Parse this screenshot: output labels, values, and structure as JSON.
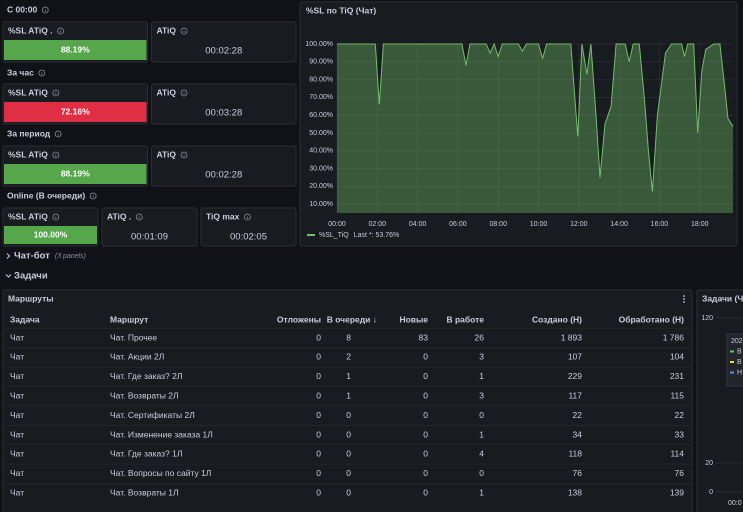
{
  "groups": [
    {
      "title": "С 00:00",
      "stats": [
        {
          "title": "%SL ATiQ .",
          "value": "88.19%",
          "color": "#56a64b"
        },
        {
          "title": "ATiQ",
          "value": "00:02:28"
        }
      ]
    },
    {
      "title": "За час",
      "stats": [
        {
          "title": "%SL ATiQ",
          "value": "72.16%",
          "color": "#e02f44"
        },
        {
          "title": "ATiQ",
          "value": "00:03:28"
        }
      ]
    },
    {
      "title": "За период",
      "stats": [
        {
          "title": "%SL ATiQ",
          "value": "88.19%",
          "color": "#56a64b"
        },
        {
          "title": "ATiQ",
          "value": "00:02:28"
        }
      ]
    },
    {
      "title": "Online (В очереди)",
      "stats": [
        {
          "title": "%SL ATiQ",
          "value": "100.00%",
          "color": "#56a64b"
        },
        {
          "title": "ATiQ .",
          "value": "00:01:09"
        },
        {
          "title": "TiQ max",
          "value": "00:02:05"
        }
      ]
    }
  ],
  "chart_data": {
    "type": "line",
    "title": "%SL по TiQ (Чат)",
    "x": [
      0,
      1.9,
      2.1,
      2.3,
      6.2,
      6.4,
      6.6,
      7.4,
      7.6,
      7.8,
      8.0,
      8.2,
      9.0,
      9.2,
      9.4,
      10.0,
      10.2,
      10.4,
      11.6,
      11.8,
      11.95,
      12.15,
      12.4,
      12.6,
      12.85,
      13.05,
      13.3,
      13.6,
      13.85,
      14.3,
      14.5,
      14.7,
      15.0,
      15.25,
      15.45,
      15.65,
      15.9,
      16.3,
      16.6,
      17.1,
      17.25,
      17.4,
      17.7,
      17.9,
      18.1,
      18.3,
      18.7,
      19.0,
      19.2,
      19.4,
      19.65
    ],
    "series": [
      {
        "name": "%SL_TiQ",
        "color": "#73bf69",
        "values": [
          100,
          100,
          66,
          100,
          100,
          88,
          100,
          100,
          95,
          100,
          93,
          100,
          100,
          96,
          100,
          100,
          92,
          100,
          100,
          70,
          48,
          100,
          83,
          100,
          60,
          25,
          55,
          65,
          100,
          100,
          90,
          100,
          100,
          70,
          40,
          17,
          60,
          95,
          100,
          100,
          93,
          100,
          100,
          50,
          85,
          97,
          100,
          100,
          80,
          58,
          53.76
        ]
      }
    ],
    "legend_stat": "Last *: 53.76%",
    "xlim": [
      0,
      19.65
    ],
    "xticks": [
      {
        "value": 0,
        "label": "00:00"
      },
      {
        "value": 2,
        "label": "02:00"
      },
      {
        "value": 4,
        "label": "04:00"
      },
      {
        "value": 6,
        "label": "06:00"
      },
      {
        "value": 8,
        "label": "08:00"
      },
      {
        "value": 10,
        "label": "10:00"
      },
      {
        "value": 12,
        "label": "12:00"
      },
      {
        "value": 14,
        "label": "14:00"
      },
      {
        "value": 16,
        "label": "16:00"
      },
      {
        "value": 18,
        "label": "18:00"
      }
    ],
    "ylim": [
      5,
      100
    ],
    "yticks": [
      {
        "value": 100,
        "label": "100.00%"
      },
      {
        "value": 90,
        "label": "90.00%"
      },
      {
        "value": 80,
        "label": "80.00%"
      },
      {
        "value": 70,
        "label": "70.00%"
      },
      {
        "value": 60,
        "label": "60.00%"
      },
      {
        "value": 50,
        "label": "50.00%"
      },
      {
        "value": 40,
        "label": "40.00%"
      },
      {
        "value": 30,
        "label": "30.00%"
      },
      {
        "value": 20,
        "label": "20.00%"
      },
      {
        "value": 10,
        "label": "10.00%"
      }
    ],
    "grid": true
  },
  "rows": [
    {
      "title": "Чат-бот",
      "note": "(3 panels)"
    },
    {
      "title": "Задачи"
    }
  ],
  "table": {
    "title": "Маршруты",
    "headers": [
      "Задача",
      "Маршрут",
      "Отложены",
      "В очереди ↓",
      "Новые",
      "В работе",
      "Создано (Н)",
      "Обработано (Н)"
    ],
    "rows": [
      [
        "Чат",
        "Чат. Прочее",
        "0",
        "8",
        "83",
        "26",
        "1 893",
        "1 786"
      ],
      [
        "Чат",
        "Чат. Акции 2Л",
        "0",
        "2",
        "0",
        "3",
        "107",
        "104"
      ],
      [
        "Чат",
        "Чат. Где заказ? 2Л",
        "0",
        "1",
        "0",
        "1",
        "229",
        "231"
      ],
      [
        "Чат",
        "Чат. Возвраты 2Л",
        "0",
        "1",
        "0",
        "3",
        "117",
        "115"
      ],
      [
        "Чат",
        "Чат. Сертификаты 2Л",
        "0",
        "0",
        "0",
        "0",
        "22",
        "22"
      ],
      [
        "Чат",
        "Чат. Изменение заказа 1Л",
        "0",
        "0",
        "0",
        "1",
        "34",
        "33"
      ],
      [
        "Чат",
        "Чат. Где заказ? 1Л",
        "0",
        "0",
        "0",
        "4",
        "118",
        "114"
      ],
      [
        "Чат",
        "Чат. Вопросы по сайту 1Л",
        "0",
        "0",
        "0",
        "0",
        "76",
        "76"
      ],
      [
        "Чат",
        "Чат. Возвраты 1Л",
        "0",
        "0",
        "0",
        "1",
        "138",
        "139"
      ]
    ]
  },
  "side_panel": {
    "title": "Задачи (Ча",
    "yticks": [
      120,
      20,
      0
    ],
    "legend": [
      {
        "label": "202"
      },
      {
        "label": "В",
        "color": "#73bf69"
      },
      {
        "label": "В",
        "color": "#fade2a"
      },
      {
        "label": "Н",
        "color": "#5794f2"
      }
    ],
    "xtick": "00:0"
  }
}
